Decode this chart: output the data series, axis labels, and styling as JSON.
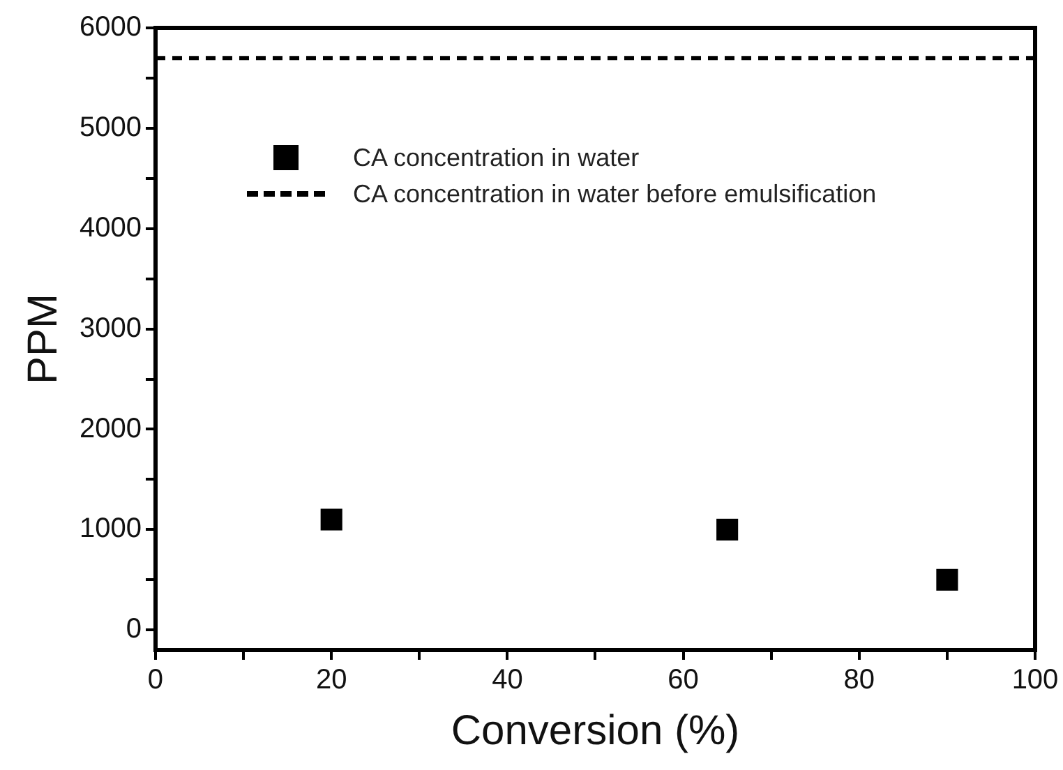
{
  "chart_data": {
    "type": "scatter",
    "xlabel": "Conversion (%)",
    "ylabel": "PPM",
    "xlim": [
      0,
      100
    ],
    "xticks": [
      0,
      {
        "value": 10,
        "label": null
      },
      20,
      {
        "value": 30,
        "label": null
      },
      40,
      {
        "value": 50,
        "label": null
      },
      60,
      {
        "value": 70,
        "label": null
      },
      80,
      {
        "value": 90,
        "label": null
      },
      100
    ],
    "ylim": [
      -200,
      6000
    ],
    "yticks": [
      0,
      {
        "value": 500,
        "label": null
      },
      1000,
      {
        "value": 1500,
        "label": null
      },
      2000,
      {
        "value": 2500,
        "label": null
      },
      3000,
      {
        "value": 3500,
        "label": null
      },
      4000,
      {
        "value": 4500,
        "label": null
      },
      5000,
      {
        "value": 5500,
        "label": null
      },
      6000
    ],
    "grid": false,
    "legend": "top left",
    "series": [
      {
        "name": "CA concentration in water",
        "color": "#000000",
        "marker": "square",
        "x": [
          20,
          65,
          90
        ],
        "values": [
          1100,
          1000,
          500
        ]
      },
      {
        "name": "CA concentration in water before emulsification",
        "color": "#000000",
        "type": "line",
        "marker": "none",
        "line_style": "dashed",
        "x": [
          0,
          100
        ],
        "values": [
          5700,
          5700
        ]
      }
    ]
  }
}
